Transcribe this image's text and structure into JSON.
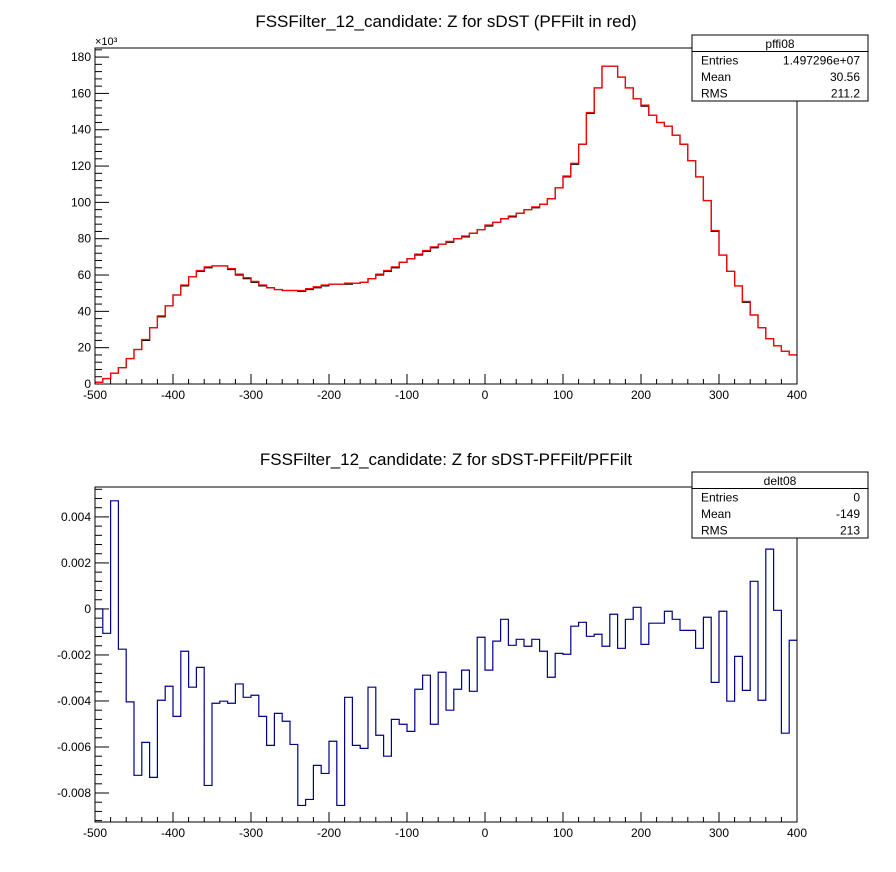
{
  "chart_data": [
    {
      "type": "bar",
      "style": "step-histogram",
      "title": "FSSFilter_12_candidate: Z for sDST (PFFilt in red)",
      "xlabel": "",
      "ylabel": "",
      "y_multiplier_label": "×10³",
      "xlim": [
        -500,
        400
      ],
      "ylim": [
        0,
        185
      ],
      "x_ticks": [
        -500,
        -400,
        -300,
        -200,
        -100,
        0,
        100,
        200,
        300,
        400
      ],
      "x_tick_labels": [
        "-500",
        "-400",
        "-300",
        "-200",
        "-100",
        "0",
        "100",
        "200",
        "300",
        "400"
      ],
      "y_ticks": [
        0,
        20,
        40,
        60,
        80,
        100,
        120,
        140,
        160,
        180
      ],
      "y_tick_labels": [
        "0",
        "20",
        "40",
        "60",
        "80",
        "100",
        "120",
        "140",
        "160",
        "180"
      ],
      "bin_start": -500,
      "bin_width": 10,
      "series": [
        {
          "name": "sDST",
          "color": "#000000",
          "values": [
            1,
            3,
            6,
            9,
            14,
            19,
            24,
            31,
            37,
            43,
            49,
            54,
            59,
            62,
            64,
            65,
            65,
            63,
            60,
            58,
            56,
            54,
            53,
            52,
            51.5,
            51.5,
            51,
            52,
            53,
            54,
            55,
            55,
            55,
            55.5,
            56,
            58,
            60,
            62,
            64,
            67,
            69,
            71,
            73,
            75,
            77,
            78,
            80,
            81,
            83,
            85,
            87,
            89,
            91,
            92,
            94,
            96,
            97,
            99,
            102,
            108,
            114,
            121,
            132,
            149,
            163,
            175,
            175,
            169,
            163,
            157,
            153,
            148,
            144,
            142,
            137,
            132,
            123,
            114,
            101,
            84,
            71,
            62,
            54,
            45,
            38,
            31,
            25,
            21,
            18,
            16
          ]
        },
        {
          "name": "PFFilt",
          "color": "#ff0000",
          "values": [
            1,
            3,
            6,
            9,
            14,
            19,
            24.5,
            31,
            37.5,
            43,
            49,
            54.5,
            59,
            62.5,
            64.5,
            65,
            65,
            63.5,
            60.5,
            58.5,
            56.5,
            54.5,
            53,
            52,
            51.5,
            51.5,
            51.5,
            52.5,
            53.5,
            54.5,
            55,
            55,
            55.5,
            55.5,
            56,
            58,
            60.5,
            62.5,
            64.5,
            67,
            69,
            71.5,
            73.5,
            75.5,
            77,
            78.5,
            80,
            81.5,
            83,
            85,
            87.5,
            89,
            91,
            92.5,
            94,
            96,
            97.5,
            99,
            102,
            108,
            114.5,
            121.5,
            132,
            149.5,
            163,
            175,
            175,
            169,
            163,
            157,
            153.5,
            148,
            144,
            142,
            137,
            132,
            123,
            114,
            101,
            84.5,
            71,
            62,
            54,
            45.5,
            38,
            31,
            25,
            21,
            18,
            16
          ]
        }
      ],
      "legend_position": "top-right",
      "stats": {
        "name": "pffi08",
        "rows": [
          {
            "label": "Entries",
            "value": "1.497296e+07"
          },
          {
            "label": "Mean",
            "value": "30.56"
          },
          {
            "label": "RMS",
            "value": "211.2"
          }
        ]
      }
    },
    {
      "type": "bar",
      "style": "step-histogram",
      "title": "FSSFilter_12_candidate: Z for sDST-PFFilt/PFFilt",
      "xlabel": "",
      "ylabel": "",
      "xlim": [
        -500,
        400
      ],
      "ylim": [
        -0.00926,
        0.0053
      ],
      "x_ticks": [
        -500,
        -400,
        -300,
        -200,
        -100,
        0,
        100,
        200,
        300,
        400
      ],
      "x_tick_labels": [
        "-500",
        "-400",
        "-300",
        "-200",
        "-100",
        "0",
        "100",
        "200",
        "300",
        "400"
      ],
      "y_ticks": [
        -0.008,
        -0.006,
        -0.004,
        -0.002,
        0,
        0.002,
        0.004
      ],
      "y_tick_labels": [
        "-0.008",
        "-0.006",
        "-0.004",
        "-0.002",
        "0",
        "0.002",
        "0.004"
      ],
      "bin_start": -500,
      "bin_width": 10,
      "series": [
        {
          "name": "delt08",
          "color": "#00008b",
          "values": [
            0,
            -0.00106,
            0.0047,
            -0.00175,
            -0.00404,
            -0.00723,
            -0.0058,
            -0.00732,
            -0.00397,
            -0.00336,
            -0.00467,
            -0.00184,
            -0.0034,
            -0.00254,
            -0.00767,
            -0.0041,
            -0.00401,
            -0.0041,
            -0.00326,
            -0.00384,
            -0.00375,
            -0.00467,
            -0.00593,
            -0.00454,
            -0.00488,
            -0.00589,
            -0.00854,
            -0.00828,
            -0.0068,
            -0.00715,
            -0.00575,
            -0.00854,
            -0.00384,
            -0.00593,
            -0.00606,
            -0.0034,
            -0.00549,
            -0.0064,
            -0.0048,
            -0.00501,
            -0.00532,
            -0.00349,
            -0.00288,
            -0.00501,
            -0.00275,
            -0.0044,
            -0.00349,
            -0.00266,
            -0.00358,
            -0.00123,
            -0.00266,
            -0.0014,
            -0.00045,
            -0.00158,
            -0.00132,
            -0.00162,
            -0.00132,
            -0.00184,
            -0.00297,
            -0.00193,
            -0.00197,
            -0.00075,
            -0.00058,
            -0.00119,
            -0.0011,
            -0.00162,
            -0.00023,
            -0.00171,
            -0.00045,
            7e-05,
            -0.00154,
            -0.00062,
            -0.00062,
            -0.0001,
            -0.00045,
            -0.00093,
            -0.00093,
            -0.00171,
            -0.00036,
            -0.00319,
            -0.0001,
            -0.00401,
            -0.00206,
            -0.00354,
            0.0012,
            -0.00397,
            0.0026,
            -6e-05,
            -0.0054,
            -0.00136
          ]
        }
      ],
      "legend_position": "top-right",
      "stats": {
        "name": "delt08",
        "rows": [
          {
            "label": "Entries",
            "value": "0"
          },
          {
            "label": "Mean",
            "value": "-149"
          },
          {
            "label": "RMS",
            "value": "213"
          }
        ]
      }
    }
  ]
}
